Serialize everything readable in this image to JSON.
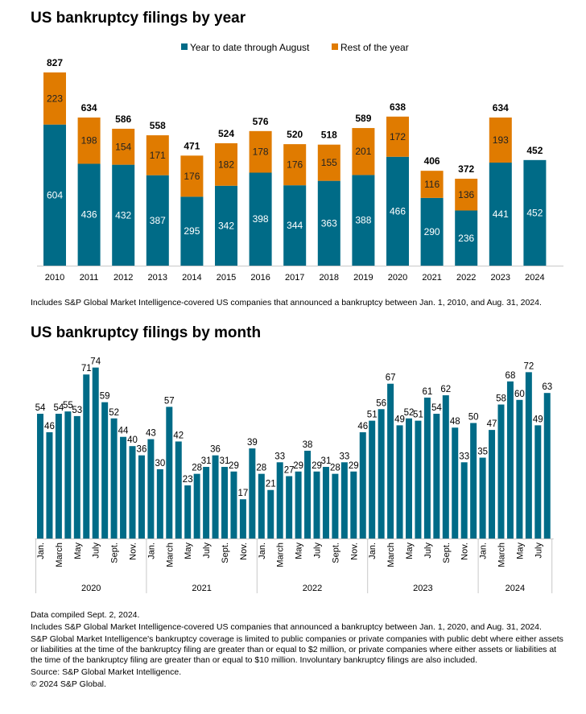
{
  "colors": {
    "ytd": "#006b87",
    "rest": "#e07b00",
    "axis": "#c8c8c8"
  },
  "chart_data": [
    {
      "type": "bar",
      "stacked": true,
      "title": "US bankruptcy filings by year",
      "legend_position": "top",
      "categories": [
        "2010",
        "2011",
        "2012",
        "2013",
        "2014",
        "2015",
        "2016",
        "2017",
        "2018",
        "2019",
        "2020",
        "2021",
        "2022",
        "2023",
        "2024"
      ],
      "series": [
        {
          "name": "Year to date through August",
          "values": [
            604,
            436,
            432,
            387,
            295,
            342,
            398,
            344,
            363,
            388,
            466,
            290,
            236,
            441,
            452
          ]
        },
        {
          "name": "Rest of the year",
          "values": [
            223,
            198,
            154,
            171,
            176,
            182,
            178,
            176,
            155,
            201,
            172,
            116,
            136,
            193,
            null
          ]
        }
      ],
      "totals": [
        827,
        634,
        586,
        558,
        471,
        524,
        576,
        520,
        518,
        589,
        638,
        406,
        372,
        634,
        452
      ],
      "note": "Includes S&P Global Market Intelligence-covered US companies that announced a bankruptcy between Jan. 1, 2010, and Aug. 31, 2024."
    },
    {
      "type": "bar",
      "title": "US bankruptcy filings by month",
      "years": [
        "2020",
        "2021",
        "2022",
        "2023",
        "2024"
      ],
      "month_tick_labels": [
        "Jan.",
        "March",
        "May",
        "July",
        "Sept.",
        "Nov."
      ],
      "values": [
        54,
        46,
        54,
        55,
        53,
        71,
        74,
        59,
        52,
        44,
        40,
        36,
        43,
        30,
        57,
        42,
        23,
        28,
        31,
        36,
        31,
        29,
        17,
        39,
        28,
        21,
        33,
        27,
        29,
        38,
        29,
        31,
        28,
        33,
        29,
        46,
        51,
        56,
        67,
        49,
        52,
        51,
        61,
        54,
        62,
        48,
        33,
        50,
        35,
        47,
        58,
        68,
        60,
        72,
        49,
        63
      ]
    }
  ],
  "footer": [
    "Data compiled Sept. 2, 2024.",
    "Includes S&P Global Market Intelligence-covered US companies that announced a bankruptcy between Jan. 1, 2020, and Aug. 31, 2024.",
    "S&P Global Market Intelligence's bankruptcy coverage is limited to public companies or private companies with public debt where either assets or liabilities at the time of the bankruptcy filing are greater than or equal to $2 million, or private companies where either assets or liabilities at the time of the bankruptcy filing are greater than or equal to $10 million. Involuntary bankruptcy filings are also included.",
    "Source: S&P Global Market Intelligence.",
    "© 2024 S&P Global."
  ]
}
